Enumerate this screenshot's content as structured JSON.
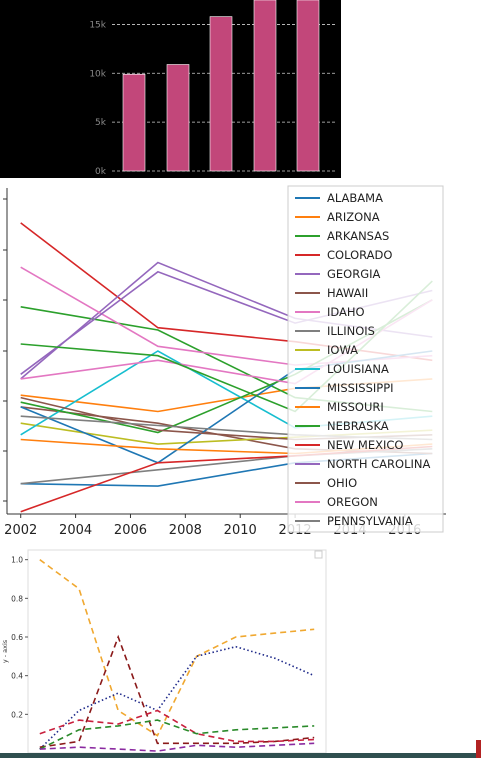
{
  "chart_data": [
    {
      "type": "bar",
      "ylim": [
        0,
        17500
      ],
      "yticks": [
        "0k",
        "5k",
        "10k",
        "15k"
      ],
      "ytick_values": [
        0,
        5000,
        10000,
        15000
      ],
      "values": [
        9900,
        10900,
        15800,
        17500,
        17500
      ],
      "color": "#c2477a",
      "grid": true
    },
    {
      "type": "line",
      "xlim": [
        2001.5,
        2017.5
      ],
      "ylim": [
        0,
        7000
      ],
      "xticks": [
        "2002",
        "2004",
        "2006",
        "2008",
        "2010",
        "2012",
        "2014",
        "2016"
      ],
      "xtick_values": [
        2002,
        2004,
        2006,
        2008,
        2010,
        2012,
        2014,
        2016
      ],
      "legend_position": "upper-right",
      "series": [
        {
          "name": "ALABAMA",
          "color": "#1f77b4",
          "x": [
            2002,
            2007,
            2012,
            2017
          ],
          "y": [
            650,
            600,
            1100,
            1300
          ]
        },
        {
          "name": "ARIZONA",
          "color": "#ff7f0e",
          "x": [
            2002,
            2007,
            2012,
            2017
          ],
          "y": [
            2550,
            2200,
            2700,
            2900
          ]
        },
        {
          "name": "ARKANSAS",
          "color": "#2ca02c",
          "x": [
            2002,
            2007,
            2012,
            2017
          ],
          "y": [
            4450,
            3950,
            2500,
            2200
          ]
        },
        {
          "name": "COLORADO",
          "color": "#d62728",
          "x": [
            2002,
            2007,
            2012,
            2017
          ],
          "y": [
            6250,
            4000,
            3700,
            3300
          ]
        },
        {
          "name": "GEORGIA",
          "color": "#9467bd",
          "x": [
            2002,
            2007,
            2012,
            2017
          ],
          "y": [
            2900,
            5400,
            4200,
            3800
          ]
        },
        {
          "name": "HAWAII",
          "color": "#8c564b",
          "x": [
            2002,
            2007,
            2012,
            2017
          ],
          "y": [
            2300,
            1950,
            1400,
            1300
          ]
        },
        {
          "name": "IDAHO",
          "color": "#e377c2",
          "x": [
            2002,
            2007,
            2012,
            2017
          ],
          "y": [
            5300,
            3600,
            3200,
            3400
          ]
        },
        {
          "name": "ILLINOIS",
          "color": "#7f7f7f",
          "x": [
            2002,
            2007,
            2012,
            2017
          ],
          "y": [
            650,
            950,
            1250,
            1400
          ]
        },
        {
          "name": "IOWA",
          "color": "#bcbd22",
          "x": [
            2002,
            2007,
            2012,
            2017
          ],
          "y": [
            1950,
            1500,
            1650,
            1800
          ]
        },
        {
          "name": "LOUISIANA",
          "color": "#17becf",
          "x": [
            2002,
            2007,
            2012,
            2017
          ],
          "y": [
            1700,
            3500,
            1850,
            2100
          ]
        },
        {
          "name": "MISSISSIPPI",
          "color": "#1f77b4",
          "x": [
            2002,
            2007,
            2012,
            2017
          ],
          "y": [
            2300,
            1100,
            3100,
            3500
          ]
        },
        {
          "name": "MISSOURI",
          "color": "#ff7f0e",
          "x": [
            2002,
            2007,
            2012,
            2017
          ],
          "y": [
            1600,
            1400,
            1300,
            1500
          ]
        },
        {
          "name": "NEBRASKA",
          "color": "#2ca02c",
          "x": [
            2002,
            2007,
            2012,
            2017
          ],
          "y": [
            2400,
            1750,
            3000,
            4600
          ]
        },
        {
          "name": "NEW MEXICO",
          "color": "#d62728",
          "x": [
            2002,
            2007,
            2012,
            2017
          ],
          "y": [
            50,
            1100,
            1250,
            1450
          ]
        },
        {
          "name": "NORTH CAROLINA",
          "color": "#9467bd",
          "x": [
            2002,
            2007,
            2012,
            2017
          ],
          "y": [
            3000,
            5200,
            4100,
            4800
          ]
        },
        {
          "name": "OHIO",
          "color": "#8c564b",
          "x": [
            2002,
            2007,
            2012,
            2017
          ],
          "y": [
            2500,
            1800,
            1600,
            1700
          ]
        },
        {
          "name": "OREGON",
          "color": "#e377c2",
          "x": [
            2002,
            2007,
            2012,
            2017
          ],
          "y": [
            2900,
            3300,
            2800,
            4600
          ]
        },
        {
          "name": "PENNSYLVANIA",
          "color": "#7f7f7f",
          "x": [
            2002,
            2007,
            2012,
            2017
          ],
          "y": [
            2100,
            1900,
            1700,
            1600
          ]
        },
        {
          "name": "",
          "color": "#2ca02c",
          "x": [
            2002,
            2007,
            2012,
            2017
          ],
          "y": [
            3650,
            3400,
            2200,
            5000
          ]
        }
      ]
    },
    {
      "type": "line",
      "ylabel": "y - axis",
      "xlim": [
        -0.3,
        7.3
      ],
      "ylim": [
        0,
        1.05
      ],
      "yticks": [
        "0.2",
        "0.4",
        "0.6",
        "0.8",
        "1.0"
      ],
      "ytick_values": [
        0.2,
        0.4,
        0.6,
        0.8,
        1.0
      ],
      "series": [
        {
          "color": "#f0a830",
          "dash": "6,4",
          "x": [
            0,
            1,
            2,
            3,
            4,
            5,
            6,
            7
          ],
          "y": [
            1.0,
            0.85,
            0.22,
            0.09,
            0.5,
            0.6,
            0.62,
            0.64
          ]
        },
        {
          "color": "#1f2a8a",
          "dash": "1.5,2.5",
          "x": [
            0,
            1,
            2,
            3,
            4,
            5,
            6,
            7
          ],
          "y": [
            0.02,
            0.22,
            0.31,
            0.22,
            0.5,
            0.55,
            0.49,
            0.4
          ]
        },
        {
          "color": "#8b1a1a",
          "dash": "6,4",
          "x": [
            0,
            1,
            2,
            3,
            4,
            5,
            6,
            7
          ],
          "y": [
            0.03,
            0.06,
            0.6,
            0.05,
            0.05,
            0.05,
            0.06,
            0.08
          ]
        },
        {
          "color": "#c81e3c",
          "dash": "6,4",
          "x": [
            0,
            1,
            2,
            3,
            4,
            5,
            6,
            7
          ],
          "y": [
            0.1,
            0.17,
            0.15,
            0.22,
            0.1,
            0.06,
            0.06,
            0.07
          ]
        },
        {
          "color": "#2a8a2a",
          "dash": "6,4",
          "x": [
            0,
            1,
            2,
            3,
            4,
            5,
            6,
            7
          ],
          "y": [
            0.02,
            0.12,
            0.14,
            0.17,
            0.1,
            0.12,
            0.13,
            0.14
          ]
        },
        {
          "color": "#8a2aa0",
          "dash": "6,4",
          "x": [
            0,
            1,
            2,
            3,
            4,
            5,
            6,
            7
          ],
          "y": [
            0.02,
            0.03,
            0.02,
            0.01,
            0.04,
            0.03,
            0.04,
            0.05
          ]
        }
      ]
    }
  ]
}
